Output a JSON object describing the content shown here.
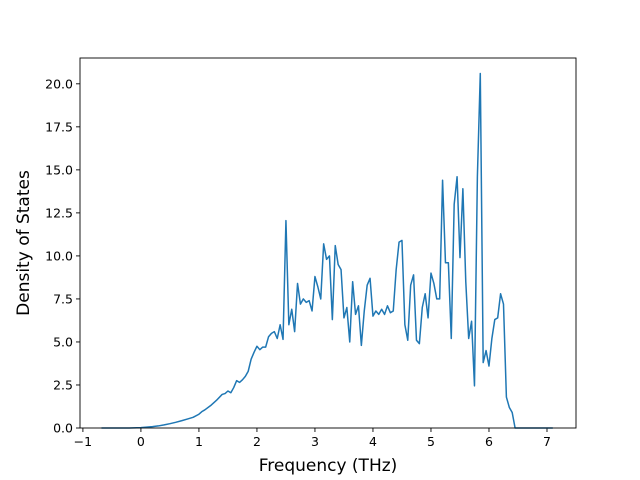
{
  "chart_data": {
    "type": "line",
    "title": "",
    "xlabel": "Frequency (THz)",
    "ylabel": "Density of States",
    "xlim": [
      -1.05,
      7.5
    ],
    "ylim": [
      0.0,
      21.5
    ],
    "xticks": [
      -1,
      0,
      1,
      2,
      3,
      4,
      5,
      6,
      7
    ],
    "yticks": [
      0.0,
      2.5,
      5.0,
      7.5,
      10.0,
      12.5,
      15.0,
      17.5,
      20.0
    ],
    "xtick_labels": [
      "−1",
      "0",
      "1",
      "2",
      "3",
      "4",
      "5",
      "6",
      "7"
    ],
    "ytick_labels": [
      "0.0",
      "2.5",
      "5.0",
      "7.5",
      "10.0",
      "12.5",
      "15.0",
      "17.5",
      "20.0"
    ],
    "grid": false,
    "line_color": "#1f77b4",
    "series": [
      {
        "x": [
          -0.68,
          -0.4,
          -0.2,
          0.0,
          0.1,
          0.2,
          0.3,
          0.4,
          0.5,
          0.6,
          0.7,
          0.8,
          0.9,
          1.0,
          1.05,
          1.1,
          1.2,
          1.3,
          1.4,
          1.45,
          1.5,
          1.55,
          1.6,
          1.65,
          1.7,
          1.75,
          1.8,
          1.85,
          1.9,
          1.95,
          2.0,
          2.05,
          2.1,
          2.15,
          2.2,
          2.25,
          2.3,
          2.35,
          2.4,
          2.45,
          2.5,
          2.55,
          2.6,
          2.65,
          2.7,
          2.75,
          2.8,
          2.85,
          2.9,
          2.95,
          3.0,
          3.05,
          3.1,
          3.15,
          3.2,
          3.25,
          3.3,
          3.35,
          3.4,
          3.45,
          3.5,
          3.55,
          3.6,
          3.65,
          3.7,
          3.75,
          3.8,
          3.85,
          3.9,
          3.95,
          4.0,
          4.05,
          4.1,
          4.15,
          4.2,
          4.25,
          4.3,
          4.35,
          4.4,
          4.45,
          4.5,
          4.55,
          4.6,
          4.65,
          4.7,
          4.75,
          4.8,
          4.85,
          4.9,
          4.95,
          5.0,
          5.05,
          5.1,
          5.15,
          5.2,
          5.25,
          5.3,
          5.35,
          5.4,
          5.45,
          5.5,
          5.55,
          5.6,
          5.65,
          5.7,
          5.75,
          5.8,
          5.85,
          5.9,
          5.95,
          6.0,
          6.05,
          6.1,
          6.15,
          6.2,
          6.25,
          6.3,
          6.35,
          6.4,
          6.45,
          6.5,
          6.6,
          6.8,
          7.1
        ],
        "y": [
          0.0,
          0.0,
          0.0,
          0.02,
          0.05,
          0.08,
          0.12,
          0.18,
          0.25,
          0.33,
          0.42,
          0.52,
          0.62,
          0.8,
          0.95,
          1.05,
          1.3,
          1.6,
          1.95,
          2.0,
          2.15,
          2.05,
          2.35,
          2.75,
          2.65,
          2.8,
          3.0,
          3.3,
          4.0,
          4.4,
          4.75,
          4.55,
          4.7,
          4.7,
          5.3,
          5.5,
          5.6,
          5.2,
          6.0,
          5.15,
          12.05,
          6.0,
          6.9,
          5.6,
          8.4,
          7.2,
          7.5,
          7.3,
          7.4,
          6.8,
          8.8,
          8.2,
          7.5,
          10.7,
          9.8,
          10.0,
          6.3,
          10.6,
          9.5,
          9.2,
          6.4,
          7.0,
          5.0,
          8.5,
          6.6,
          7.1,
          4.8,
          6.8,
          8.3,
          8.7,
          6.5,
          6.8,
          6.6,
          6.9,
          6.6,
          7.1,
          6.7,
          6.8,
          9.2,
          10.8,
          10.9,
          6.0,
          5.1,
          8.3,
          8.9,
          5.1,
          4.9,
          7.0,
          7.8,
          6.4,
          9.0,
          8.4,
          7.5,
          7.5,
          14.4,
          9.6,
          9.6,
          5.2,
          13.0,
          14.6,
          9.9,
          13.9,
          8.5,
          5.2,
          6.2,
          2.45,
          14.6,
          20.6,
          3.8,
          4.5,
          3.6,
          5.2,
          6.3,
          6.4,
          7.8,
          7.2,
          1.8,
          1.2,
          0.9,
          0.0,
          0.0,
          0.0,
          0.0,
          0.0
        ]
      }
    ]
  }
}
